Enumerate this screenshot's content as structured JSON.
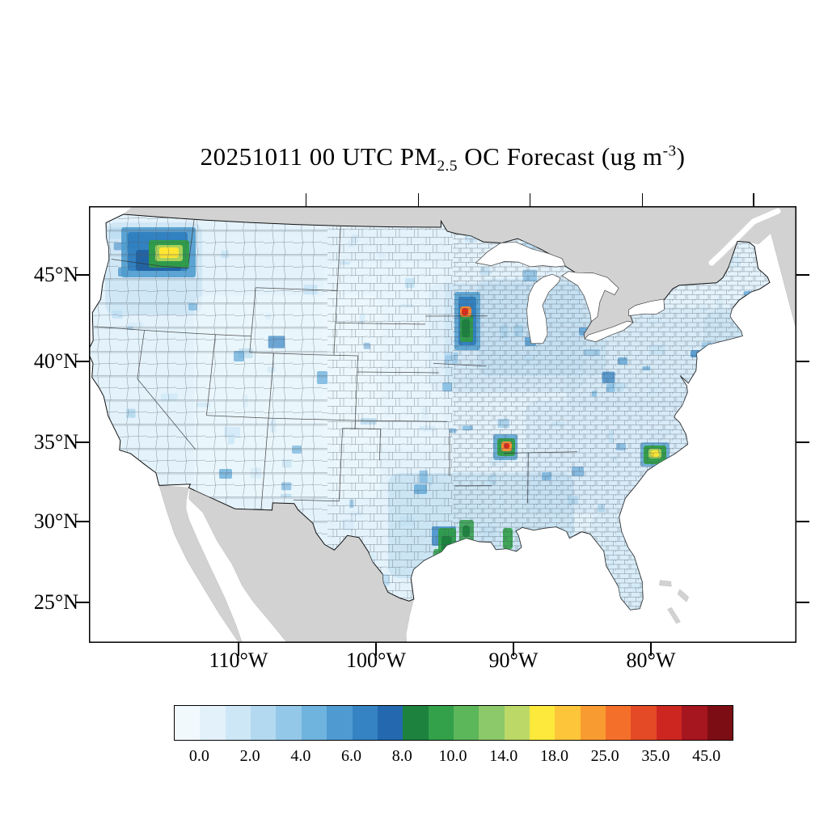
{
  "title": {
    "part1": "20251011 00 UTC PM",
    "subscript": "2.5",
    "part2": " OC Forecast (ug m",
    "superscript": "-3",
    "part3": ")"
  },
  "axes": {
    "lat_labels": [
      "45°N",
      "40°N",
      "35°N",
      "30°N",
      "25°N"
    ],
    "lon_labels": [
      "110°W",
      "100°W",
      "90°W",
      "80°W"
    ]
  },
  "colorbar": {
    "tick_labels": [
      "0.0",
      "2.0",
      "4.0",
      "6.0",
      "8.0",
      "10.0",
      "14.0",
      "18.0",
      "25.0",
      "35.0",
      "45.0"
    ],
    "units": "ug m-3",
    "colors": [
      "#f2f9fd",
      "#e2f1fa",
      "#cde7f6",
      "#b2d9f0",
      "#93c8e9",
      "#6fb3df",
      "#4f9ad0",
      "#3583c2",
      "#2469af",
      "#1c823d",
      "#33a04a",
      "#5cb75b",
      "#8cc96a",
      "#bcd968",
      "#fde93b",
      "#fdc53a",
      "#f89b31",
      "#f4702a",
      "#e44a26",
      "#cd2620",
      "#a5161f",
      "#7c0d14"
    ]
  },
  "chart_data": {
    "type": "choropleth-map",
    "title": "20251011 00 UTC PM2.5 OC Forecast (ug m-3)",
    "variable": "PM2.5 organic carbon (OC) concentration",
    "forecast_time": "20251011 00 UTC",
    "region": "Continental United States, county-level",
    "units": "ug m-3",
    "scale_breakpoints": [
      0.0,
      2.0,
      4.0,
      6.0,
      8.0,
      10.0,
      14.0,
      18.0,
      25.0,
      35.0,
      45.0
    ],
    "lat_ticks_deg_n": [
      45,
      40,
      35,
      30,
      25
    ],
    "lon_ticks_deg_w": [
      110,
      100,
      90,
      80
    ],
    "background_summary": "Most counties 0-4 ug m-3 (light blues); broader 2-6 ug m-3 over the Upper Midwest, Northeast, Southeast and Gulf Coast; palest values over the interior West.",
    "hotspots": [
      {
        "location": "Central Washington (Cascades)",
        "approx_peak": "10-18"
      },
      {
        "location": "Minnesota-Wisconsin border valley",
        "approx_peak": "25-45"
      },
      {
        "location": "Memphis area / northeast Arkansas (Mississippi Delta)",
        "approx_peak": "25-35"
      },
      {
        "location": "Southeast Texas / Houston-Beaumont Gulf Coast",
        "approx_peak": "8-14"
      },
      {
        "location": "Lower Mississippi / Mobile Gulf Coast",
        "approx_peak": "8-14"
      },
      {
        "location": "Eastern North Carolina coast",
        "approx_peak": "10-18"
      }
    ]
  }
}
